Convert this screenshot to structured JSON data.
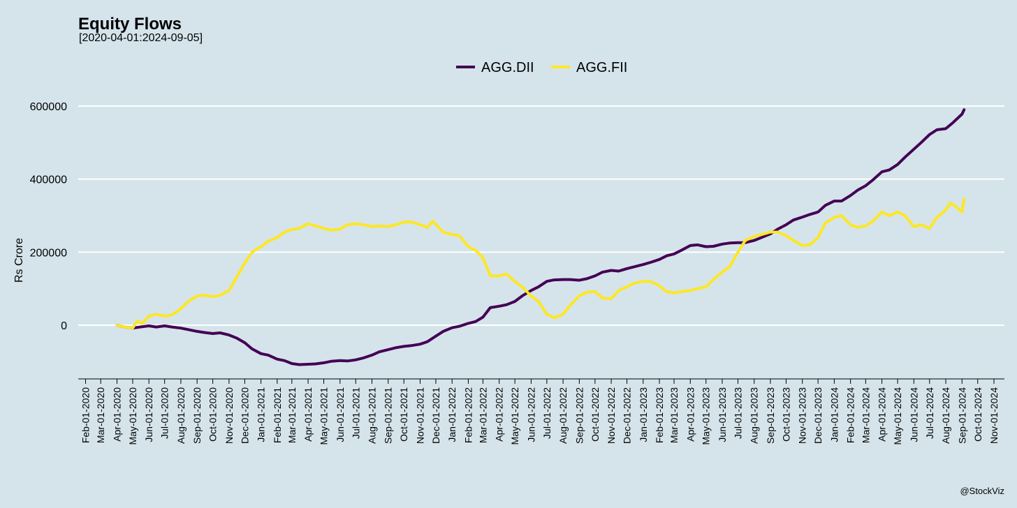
{
  "chart_data": {
    "type": "line",
    "title": "Equity Flows",
    "subtitle": "[2020-04-01:2024-09-05]",
    "xlabel": "",
    "ylabel": "Rs Crore",
    "caption": "@StockViz",
    "legend_position": "top",
    "grid": "horizontal",
    "xlim": [
      "2020-01-18",
      "2024-11-21"
    ],
    "ylim": [
      -135000,
      700000
    ],
    "yticks": [
      0,
      200000,
      400000,
      600000
    ],
    "ytick_labels": [
      "0",
      "200000",
      "400000",
      "600000"
    ],
    "xtick_labels": [
      "Feb-01-2020",
      "Mar-01-2020",
      "Apr-01-2020",
      "May-01-2020",
      "Jun-01-2020",
      "Jul-01-2020",
      "Aug-01-2020",
      "Sep-01-2020",
      "Oct-01-2020",
      "Nov-01-2020",
      "Dec-01-2020",
      "Jan-01-2021",
      "Feb-01-2021",
      "Mar-01-2021",
      "Apr-01-2021",
      "May-01-2021",
      "Jun-01-2021",
      "Jul-01-2021",
      "Aug-01-2021",
      "Sep-01-2021",
      "Oct-01-2021",
      "Nov-01-2021",
      "Dec-01-2021",
      "Jan-01-2022",
      "Feb-01-2022",
      "Mar-01-2022",
      "Apr-01-2022",
      "May-01-2022",
      "Jun-01-2022",
      "Jul-01-2022",
      "Aug-01-2022",
      "Sep-01-2022",
      "Oct-01-2022",
      "Nov-01-2022",
      "Dec-01-2022",
      "Jan-01-2023",
      "Feb-01-2023",
      "Mar-01-2023",
      "Apr-01-2023",
      "May-01-2023",
      "Jun-01-2023",
      "Jul-01-2023",
      "Aug-01-2023",
      "Sep-01-2023",
      "Oct-01-2023",
      "Nov-01-2023",
      "Dec-01-2023",
      "Jan-01-2024",
      "Feb-01-2024",
      "Mar-01-2024",
      "Apr-01-2024",
      "May-01-2024",
      "Jun-01-2024",
      "Jul-01-2024",
      "Aug-01-2024",
      "Sep-01-2024",
      "Oct-01-2024",
      "Nov-01-2024"
    ],
    "series": [
      {
        "name": "AGG.DII",
        "color": "#440154",
        "points": [
          [
            "2020-04-01",
            0
          ],
          [
            "2020-04-15",
            -5000
          ],
          [
            "2020-05-01",
            -8000
          ],
          [
            "2020-05-15",
            -5000
          ],
          [
            "2020-06-01",
            -2000
          ],
          [
            "2020-06-15",
            -5000
          ],
          [
            "2020-07-01",
            -2000
          ],
          [
            "2020-07-15",
            -5000
          ],
          [
            "2020-08-01",
            -8000
          ],
          [
            "2020-08-15",
            -12000
          ],
          [
            "2020-09-01",
            -17000
          ],
          [
            "2020-09-15",
            -20000
          ],
          [
            "2020-10-01",
            -23000
          ],
          [
            "2020-10-15",
            -21000
          ],
          [
            "2020-11-01",
            -27000
          ],
          [
            "2020-11-15",
            -35000
          ],
          [
            "2020-12-01",
            -48000
          ],
          [
            "2020-12-15",
            -65000
          ],
          [
            "2021-01-01",
            -78000
          ],
          [
            "2021-01-15",
            -82000
          ],
          [
            "2021-02-01",
            -93000
          ],
          [
            "2021-02-15",
            -97000
          ],
          [
            "2021-03-01",
            -105000
          ],
          [
            "2021-03-15",
            -108000
          ],
          [
            "2021-04-01",
            -107000
          ],
          [
            "2021-04-15",
            -106000
          ],
          [
            "2021-05-01",
            -103000
          ],
          [
            "2021-05-15",
            -99000
          ],
          [
            "2021-06-01",
            -97000
          ],
          [
            "2021-06-15",
            -98000
          ],
          [
            "2021-07-01",
            -95000
          ],
          [
            "2021-07-15",
            -90000
          ],
          [
            "2021-08-01",
            -82000
          ],
          [
            "2021-08-15",
            -73000
          ],
          [
            "2021-09-01",
            -67000
          ],
          [
            "2021-09-15",
            -62000
          ],
          [
            "2021-10-01",
            -58000
          ],
          [
            "2021-10-15",
            -56000
          ],
          [
            "2021-11-01",
            -52000
          ],
          [
            "2021-11-15",
            -45000
          ],
          [
            "2021-12-01",
            -30000
          ],
          [
            "2021-12-15",
            -17000
          ],
          [
            "2022-01-01",
            -7000
          ],
          [
            "2022-01-15",
            -3000
          ],
          [
            "2022-02-01",
            5000
          ],
          [
            "2022-02-15",
            10000
          ],
          [
            "2022-03-01",
            22000
          ],
          [
            "2022-03-15",
            48000
          ],
          [
            "2022-04-01",
            52000
          ],
          [
            "2022-04-15",
            56000
          ],
          [
            "2022-05-01",
            65000
          ],
          [
            "2022-05-15",
            80000
          ],
          [
            "2022-06-01",
            95000
          ],
          [
            "2022-06-15",
            105000
          ],
          [
            "2022-07-01",
            120000
          ],
          [
            "2022-07-15",
            124000
          ],
          [
            "2022-08-01",
            125000
          ],
          [
            "2022-08-15",
            125000
          ],
          [
            "2022-09-01",
            123000
          ],
          [
            "2022-09-15",
            127000
          ],
          [
            "2022-10-01",
            135000
          ],
          [
            "2022-10-15",
            145000
          ],
          [
            "2022-11-01",
            150000
          ],
          [
            "2022-11-15",
            148000
          ],
          [
            "2022-12-01",
            155000
          ],
          [
            "2022-12-15",
            160000
          ],
          [
            "2023-01-01",
            166000
          ],
          [
            "2023-01-15",
            172000
          ],
          [
            "2023-02-01",
            180000
          ],
          [
            "2023-02-15",
            190000
          ],
          [
            "2023-03-01",
            195000
          ],
          [
            "2023-03-15",
            205000
          ],
          [
            "2023-04-01",
            218000
          ],
          [
            "2023-04-15",
            220000
          ],
          [
            "2023-05-01",
            215000
          ],
          [
            "2023-05-15",
            216000
          ],
          [
            "2023-06-01",
            222000
          ],
          [
            "2023-06-15",
            225000
          ],
          [
            "2023-07-01",
            226000
          ],
          [
            "2023-07-15",
            226000
          ],
          [
            "2023-08-01",
            232000
          ],
          [
            "2023-08-15",
            240000
          ],
          [
            "2023-09-01",
            250000
          ],
          [
            "2023-09-15",
            263000
          ],
          [
            "2023-10-01",
            275000
          ],
          [
            "2023-10-15",
            288000
          ],
          [
            "2023-11-01",
            296000
          ],
          [
            "2023-11-15",
            303000
          ],
          [
            "2023-12-01",
            310000
          ],
          [
            "2023-12-15",
            328000
          ],
          [
            "2024-01-01",
            340000
          ],
          [
            "2024-01-15",
            340000
          ],
          [
            "2024-02-01",
            355000
          ],
          [
            "2024-02-15",
            370000
          ],
          [
            "2024-03-01",
            382000
          ],
          [
            "2024-03-15",
            398000
          ],
          [
            "2024-04-01",
            420000
          ],
          [
            "2024-04-15",
            425000
          ],
          [
            "2024-05-01",
            440000
          ],
          [
            "2024-05-15",
            460000
          ],
          [
            "2024-06-01",
            482000
          ],
          [
            "2024-06-15",
            500000
          ],
          [
            "2024-07-01",
            522000
          ],
          [
            "2024-07-15",
            535000
          ],
          [
            "2024-08-01",
            538000
          ],
          [
            "2024-08-15",
            555000
          ],
          [
            "2024-09-01",
            578000
          ],
          [
            "2024-09-05",
            590000
          ]
        ]
      },
      {
        "name": "AGG.FII",
        "color": "#fde725",
        "points": [
          [
            "2020-04-01",
            0
          ],
          [
            "2020-04-15",
            -5000
          ],
          [
            "2020-05-01",
            -8000
          ],
          [
            "2020-05-10",
            12000
          ],
          [
            "2020-05-20",
            5000
          ],
          [
            "2020-06-01",
            25000
          ],
          [
            "2020-06-15",
            30000
          ],
          [
            "2020-07-01",
            25000
          ],
          [
            "2020-07-15",
            28000
          ],
          [
            "2020-08-01",
            45000
          ],
          [
            "2020-08-15",
            65000
          ],
          [
            "2020-09-01",
            80000
          ],
          [
            "2020-09-15",
            82000
          ],
          [
            "2020-10-01",
            78000
          ],
          [
            "2020-10-15",
            82000
          ],
          [
            "2020-11-01",
            95000
          ],
          [
            "2020-11-15",
            130000
          ],
          [
            "2020-12-01",
            170000
          ],
          [
            "2020-12-15",
            200000
          ],
          [
            "2021-01-01",
            215000
          ],
          [
            "2021-01-15",
            230000
          ],
          [
            "2021-02-01",
            240000
          ],
          [
            "2021-02-15",
            255000
          ],
          [
            "2021-03-01",
            262000
          ],
          [
            "2021-03-15",
            265000
          ],
          [
            "2021-04-01",
            278000
          ],
          [
            "2021-04-15",
            272000
          ],
          [
            "2021-05-01",
            265000
          ],
          [
            "2021-05-15",
            260000
          ],
          [
            "2021-06-01",
            263000
          ],
          [
            "2021-06-15",
            275000
          ],
          [
            "2021-07-01",
            278000
          ],
          [
            "2021-07-15",
            275000
          ],
          [
            "2021-08-01",
            270000
          ],
          [
            "2021-08-15",
            272000
          ],
          [
            "2021-09-01",
            270000
          ],
          [
            "2021-09-15",
            275000
          ],
          [
            "2021-10-01",
            282000
          ],
          [
            "2021-10-15",
            283000
          ],
          [
            "2021-11-01",
            275000
          ],
          [
            "2021-11-15",
            268000
          ],
          [
            "2021-11-25",
            285000
          ],
          [
            "2021-12-15",
            255000
          ],
          [
            "2022-01-01",
            248000
          ],
          [
            "2022-01-15",
            245000
          ],
          [
            "2022-02-01",
            215000
          ],
          [
            "2022-02-15",
            205000
          ],
          [
            "2022-03-01",
            185000
          ],
          [
            "2022-03-15",
            135000
          ],
          [
            "2022-04-01",
            135000
          ],
          [
            "2022-04-15",
            140000
          ],
          [
            "2022-05-01",
            120000
          ],
          [
            "2022-05-15",
            105000
          ],
          [
            "2022-06-01",
            80000
          ],
          [
            "2022-06-15",
            65000
          ],
          [
            "2022-07-01",
            30000
          ],
          [
            "2022-07-15",
            20000
          ],
          [
            "2022-08-01",
            30000
          ],
          [
            "2022-08-15",
            55000
          ],
          [
            "2022-09-01",
            80000
          ],
          [
            "2022-09-15",
            90000
          ],
          [
            "2022-10-01",
            92000
          ],
          [
            "2022-10-15",
            75000
          ],
          [
            "2022-11-01",
            72000
          ],
          [
            "2022-11-15",
            95000
          ],
          [
            "2022-12-01",
            105000
          ],
          [
            "2022-12-15",
            115000
          ],
          [
            "2023-01-01",
            120000
          ],
          [
            "2023-01-15",
            120000
          ],
          [
            "2023-02-01",
            108000
          ],
          [
            "2023-02-15",
            92000
          ],
          [
            "2023-03-01",
            88000
          ],
          [
            "2023-03-15",
            92000
          ],
          [
            "2023-04-01",
            95000
          ],
          [
            "2023-04-15",
            100000
          ],
          [
            "2023-05-01",
            105000
          ],
          [
            "2023-05-15",
            125000
          ],
          [
            "2023-06-01",
            145000
          ],
          [
            "2023-06-15",
            160000
          ],
          [
            "2023-07-01",
            200000
          ],
          [
            "2023-07-15",
            232000
          ],
          [
            "2023-08-01",
            243000
          ],
          [
            "2023-08-15",
            248000
          ],
          [
            "2023-09-01",
            255000
          ],
          [
            "2023-09-15",
            255000
          ],
          [
            "2023-10-01",
            245000
          ],
          [
            "2023-10-15",
            232000
          ],
          [
            "2023-11-01",
            218000
          ],
          [
            "2023-11-15",
            220000
          ],
          [
            "2023-12-01",
            240000
          ],
          [
            "2023-12-15",
            280000
          ],
          [
            "2024-01-01",
            295000
          ],
          [
            "2024-01-15",
            300000
          ],
          [
            "2024-02-01",
            275000
          ],
          [
            "2024-02-15",
            268000
          ],
          [
            "2024-03-01",
            272000
          ],
          [
            "2024-03-15",
            285000
          ],
          [
            "2024-04-01",
            310000
          ],
          [
            "2024-04-15",
            300000
          ],
          [
            "2024-05-01",
            310000
          ],
          [
            "2024-05-15",
            300000
          ],
          [
            "2024-06-01",
            270000
          ],
          [
            "2024-06-15",
            275000
          ],
          [
            "2024-07-01",
            265000
          ],
          [
            "2024-07-15",
            295000
          ],
          [
            "2024-08-01",
            315000
          ],
          [
            "2024-08-10",
            335000
          ],
          [
            "2024-08-20",
            325000
          ],
          [
            "2024-09-01",
            310000
          ],
          [
            "2024-09-05",
            345000
          ]
        ]
      }
    ]
  }
}
